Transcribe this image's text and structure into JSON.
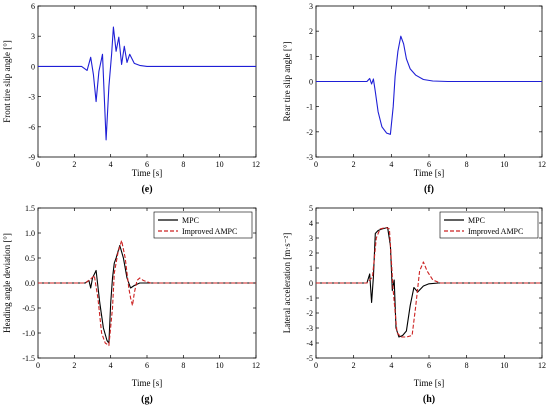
{
  "chart_data": [
    {
      "id": "e",
      "panel_label": "(e)",
      "type": "line",
      "xlabel": "Time [s]",
      "ylabel": "Front tire slip angle [°]",
      "xlim": [
        0,
        12
      ],
      "ylim": [
        -9,
        6
      ],
      "xticks": [
        0,
        2,
        4,
        6,
        8,
        10,
        12
      ],
      "yticks": [
        -9,
        -6,
        -3,
        0,
        3,
        6
      ],
      "ytick_labels": [
        "-9",
        "-6",
        "-3",
        "0",
        "3",
        "6"
      ],
      "legend": null,
      "series": [
        {
          "color": "#1f1fd6",
          "dash": "",
          "x": [
            0,
            2.4,
            2.7,
            2.9,
            3.05,
            3.2,
            3.35,
            3.55,
            3.75,
            3.9,
            4.05,
            4.15,
            4.3,
            4.45,
            4.6,
            4.75,
            4.9,
            5.05,
            5.3,
            5.6,
            6.0,
            12
          ],
          "y": [
            0,
            0,
            -0.4,
            0.9,
            -0.8,
            -3.5,
            -0.5,
            1.2,
            -7.3,
            -2.0,
            1.2,
            3.9,
            1.5,
            2.9,
            0.2,
            2.0,
            0.4,
            1.2,
            0.3,
            0.1,
            0,
            0
          ]
        }
      ]
    },
    {
      "id": "f",
      "panel_label": "(f)",
      "type": "line",
      "xlabel": "Time [s]",
      "ylabel": "Rear tire slip angle [°]",
      "xlim": [
        0,
        12
      ],
      "ylim": [
        -3,
        3
      ],
      "xticks": [
        0,
        2,
        4,
        6,
        8,
        10,
        12
      ],
      "yticks": [
        -3,
        -2,
        -1,
        0,
        1,
        2,
        3
      ],
      "ytick_labels": [
        "-3",
        "-2",
        "-1",
        "0",
        "1",
        "2",
        "3"
      ],
      "legend": null,
      "series": [
        {
          "color": "#1f1fd6",
          "dash": "",
          "x": [
            0,
            2.7,
            2.85,
            2.95,
            3.05,
            3.15,
            3.3,
            3.5,
            3.75,
            3.95,
            4.1,
            4.2,
            4.35,
            4.5,
            4.65,
            4.8,
            5.0,
            5.3,
            5.7,
            6.2,
            7,
            12
          ],
          "y": [
            0,
            0,
            0.12,
            -0.1,
            0.1,
            -0.4,
            -1.2,
            -1.8,
            -2.05,
            -2.1,
            -1.0,
            0.2,
            1.2,
            1.8,
            1.5,
            0.9,
            0.5,
            0.25,
            0.08,
            0.02,
            0,
            0
          ]
        }
      ]
    },
    {
      "id": "g",
      "panel_label": "(g)",
      "type": "line",
      "xlabel": "Time [s]",
      "ylabel": "Heading angle deviation [°]",
      "xlim": [
        0,
        12
      ],
      "ylim": [
        -1.5,
        1.5
      ],
      "xticks": [
        0,
        2,
        4,
        6,
        8,
        10,
        12
      ],
      "yticks": [
        -1.5,
        -1.0,
        -0.5,
        0.0,
        0.5,
        1.0,
        1.5
      ],
      "ytick_labels": [
        "-1.5",
        "-1.0",
        "-0.5",
        "0.0",
        "0.5",
        "1.0",
        "1.5"
      ],
      "legend": {
        "position": "top-right"
      },
      "series": [
        {
          "name": "MPC",
          "color": "#000000",
          "dash": "",
          "x": [
            0,
            2.6,
            2.8,
            2.9,
            3.0,
            3.2,
            3.4,
            3.6,
            3.8,
            3.9,
            4.0,
            4.1,
            4.2,
            4.3,
            4.5,
            4.7,
            4.9,
            5.1,
            5.3,
            5.6,
            6,
            12
          ],
          "y": [
            0,
            0,
            0.05,
            -0.1,
            0.1,
            0.25,
            -0.4,
            -0.9,
            -1.15,
            -1.2,
            -0.4,
            0.1,
            0.4,
            0.5,
            0.75,
            0.5,
            0.1,
            -0.1,
            -0.05,
            0,
            0,
            0
          ]
        },
        {
          "name": "Improved AMPC",
          "color": "#cc2222",
          "dash": "4,2",
          "x": [
            0,
            2.6,
            2.9,
            3.1,
            3.3,
            3.5,
            3.7,
            3.9,
            4.1,
            4.2,
            4.4,
            4.6,
            4.8,
            5.0,
            5.1,
            5.2,
            5.3,
            5.45,
            5.6,
            5.8,
            6.2,
            12
          ],
          "y": [
            0,
            0,
            0.08,
            0.15,
            -0.3,
            -1.0,
            -1.2,
            -1.25,
            -0.5,
            0.2,
            0.6,
            0.85,
            0.5,
            -0.1,
            -0.3,
            -0.45,
            -0.2,
            0.05,
            0.1,
            0.05,
            0,
            0
          ]
        }
      ]
    },
    {
      "id": "h",
      "panel_label": "(h)",
      "type": "line",
      "xlabel": "Time [s]",
      "ylabel": "Lateral acceleration [m·s⁻²]",
      "xlim": [
        0,
        12
      ],
      "ylim": [
        -5,
        5
      ],
      "xticks": [
        0,
        2,
        4,
        6,
        8,
        10,
        12
      ],
      "yticks": [
        -5,
        -4,
        -3,
        -2,
        -1,
        0,
        1,
        2,
        3,
        4,
        5
      ],
      "ytick_labels": [
        "-5",
        "-4",
        "-3",
        "-2",
        "-1",
        "0",
        "1",
        "2",
        "3",
        "4",
        "5"
      ],
      "legend": {
        "position": "top-right"
      },
      "series": [
        {
          "name": "MPC",
          "color": "#000000",
          "dash": "",
          "x": [
            0,
            2.7,
            2.85,
            2.95,
            3.05,
            3.15,
            3.3,
            3.5,
            3.8,
            3.95,
            4.05,
            4.15,
            4.25,
            4.4,
            4.6,
            4.8,
            5.0,
            5.2,
            5.4,
            5.7,
            6.0,
            6.5,
            12
          ],
          "y": [
            0,
            0,
            0.6,
            -1.3,
            0.4,
            3.3,
            3.5,
            3.6,
            3.7,
            2.5,
            -0.5,
            0.2,
            -3.0,
            -3.6,
            -3.5,
            -3.2,
            -1.5,
            -0.3,
            -0.6,
            -0.2,
            -0.05,
            0,
            0
          ]
        },
        {
          "name": "Improved AMPC",
          "color": "#cc2222",
          "dash": "4,2",
          "x": [
            0,
            2.7,
            3.0,
            3.2,
            3.4,
            3.7,
            3.9,
            4.1,
            4.3,
            4.5,
            4.8,
            5.1,
            5.3,
            5.5,
            5.7,
            5.9,
            6.2,
            6.6,
            12
          ],
          "y": [
            0,
            0,
            0.4,
            3.0,
            3.6,
            3.7,
            3.6,
            -0.5,
            -3.3,
            -3.6,
            -3.6,
            -3.5,
            -1.5,
            0.8,
            1.4,
            0.8,
            0.2,
            0,
            0
          ]
        }
      ]
    }
  ]
}
